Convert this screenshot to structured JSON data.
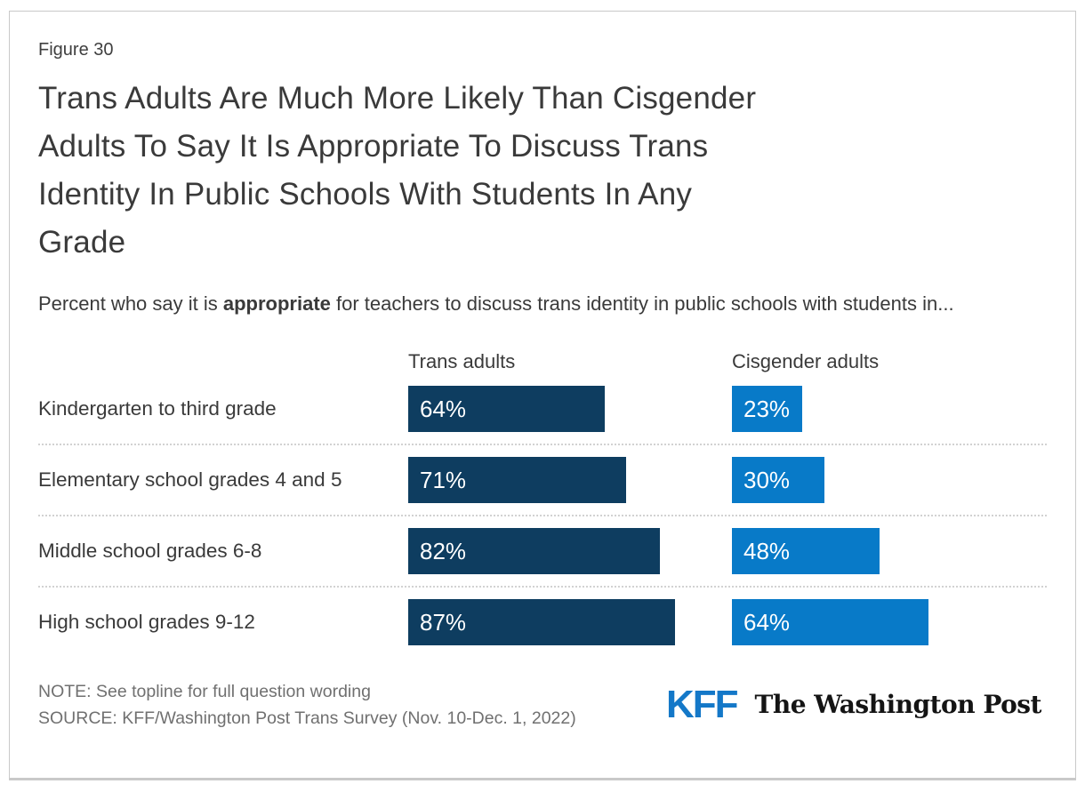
{
  "figure_label": "Figure 30",
  "title_lines": [
    "Trans Adults Are Much More Likely Than Cisgender",
    "Adults To Say It Is Appropriate To Discuss Trans",
    "Identity In Public Schools With Students In Any",
    "Grade"
  ],
  "subtitle": {
    "prefix": "Percent who say it is ",
    "bold": "appropriate",
    "suffix": " for teachers to discuss trans identity in public schools with students in..."
  },
  "chart_data": {
    "type": "bar",
    "orientation": "horizontal",
    "categories": [
      "Kindergarten to third grade",
      "Elementary school grades 4 and 5",
      "Middle school grades 6-8",
      "High school grades 9-12"
    ],
    "series": [
      {
        "name": "Trans adults",
        "color": "#0E3D60",
        "values": [
          64,
          71,
          82,
          87
        ]
      },
      {
        "name": "Cisgender adults",
        "color": "#087AC8",
        "values": [
          23,
          30,
          48,
          64
        ]
      }
    ],
    "value_suffix": "%",
    "xlim": [
      0,
      100
    ],
    "grid": false,
    "value_labels": "inside-start",
    "legend_position": "column-headers"
  },
  "footer": {
    "note": "NOTE: See topline for full question wording",
    "source": "SOURCE: KFF/Washington Post Trans Survey (Nov. 10-Dec. 1, 2022)",
    "logos": [
      {
        "label": "KFF",
        "color": "#1478C8"
      },
      {
        "label": "The Washington Post",
        "color": "#141414"
      }
    ]
  }
}
